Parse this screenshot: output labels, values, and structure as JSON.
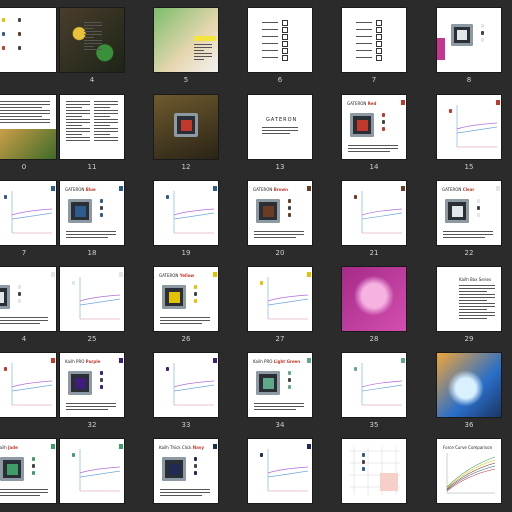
{
  "colors": {
    "background": "#2b2b2b",
    "page": "#ffffff",
    "label": "#cfcfcf",
    "red": "#c0392b",
    "blue": "#2d5b8e",
    "brown": "#6b3b22",
    "clear": "#e0e6ea",
    "yellow": "#e3c200",
    "purple": "#3e1e7a",
    "lightgreen": "#5fa889",
    "jade": "#3e9e6a",
    "navy": "#1f2a55",
    "magenta": "#c2378f"
  },
  "rows": [
    {
      "pages": [
        {
          "kind": "icons",
          "label": ""
        },
        {
          "kind": "photo-dark",
          "label": "4"
        },
        {
          "kind": "photo-bright",
          "label": "5"
        },
        {
          "kind": "list",
          "label": "6"
        },
        {
          "kind": "list2",
          "label": "7"
        },
        {
          "kind": "switch-pink",
          "label": "8"
        }
      ]
    },
    {
      "pages": [
        {
          "kind": "text-photo",
          "label": "0"
        },
        {
          "kind": "text-columns",
          "label": "11"
        },
        {
          "kind": "photo-switch",
          "label": "12"
        },
        {
          "kind": "title",
          "label": "13",
          "title": "GATERON"
        },
        {
          "kind": "switch",
          "label": "14",
          "header": "GATERON",
          "name": "Red",
          "color": "red"
        },
        {
          "kind": "graph",
          "label": "15",
          "color": "red"
        }
      ]
    },
    {
      "pages": [
        {
          "kind": "graph",
          "label": "7",
          "color": "blue"
        },
        {
          "kind": "switch",
          "label": "18",
          "header": "GATERON",
          "name": "Blue",
          "color": "blue"
        },
        {
          "kind": "graph",
          "label": "19",
          "color": "blue"
        },
        {
          "kind": "switch",
          "label": "20",
          "header": "GATERON",
          "name": "Brown",
          "color": "brown"
        },
        {
          "kind": "graph",
          "label": "21",
          "color": "brown"
        },
        {
          "kind": "switch",
          "label": "22",
          "header": "GATERON",
          "name": "Clear",
          "color": "clear"
        }
      ]
    },
    {
      "pages": [
        {
          "kind": "switch-partial",
          "label": "4",
          "color": "clear"
        },
        {
          "kind": "graph",
          "label": "25",
          "color": "clear"
        },
        {
          "kind": "switch",
          "label": "26",
          "header": "GATERON",
          "name": "Yellow",
          "color": "yellow"
        },
        {
          "kind": "graph",
          "label": "27",
          "color": "yellow"
        },
        {
          "kind": "photo-magenta",
          "label": "28"
        },
        {
          "kind": "text-title",
          "label": "29",
          "title": "Kailh Box Series"
        }
      ]
    },
    {
      "pages": [
        {
          "kind": "graph",
          "label": "",
          "color": "red"
        },
        {
          "kind": "switch",
          "label": "32",
          "header": "Kailh PRO",
          "name": "Purple",
          "color": "purple"
        },
        {
          "kind": "graph",
          "label": "33",
          "color": "purple"
        },
        {
          "kind": "switch",
          "label": "34",
          "header": "Kailh PRO",
          "name": "Light Green",
          "color": "lightgreen"
        },
        {
          "kind": "graph",
          "label": "35",
          "color": "lightgreen"
        },
        {
          "kind": "photo-blue",
          "label": "36"
        }
      ]
    },
    {
      "pages": [
        {
          "kind": "switch",
          "label": "",
          "header": "Kailh",
          "name": "Jade",
          "color": "jade"
        },
        {
          "kind": "graph",
          "label": "",
          "color": "jade"
        },
        {
          "kind": "switch",
          "label": "",
          "header": "Kailh Thick Click",
          "name": "Navy",
          "color": "navy"
        },
        {
          "kind": "graph",
          "label": "",
          "color": "navy"
        },
        {
          "kind": "chart-grid",
          "label": ""
        },
        {
          "kind": "comparison",
          "label": "",
          "title": "Force Curve Comparison"
        }
      ]
    }
  ]
}
